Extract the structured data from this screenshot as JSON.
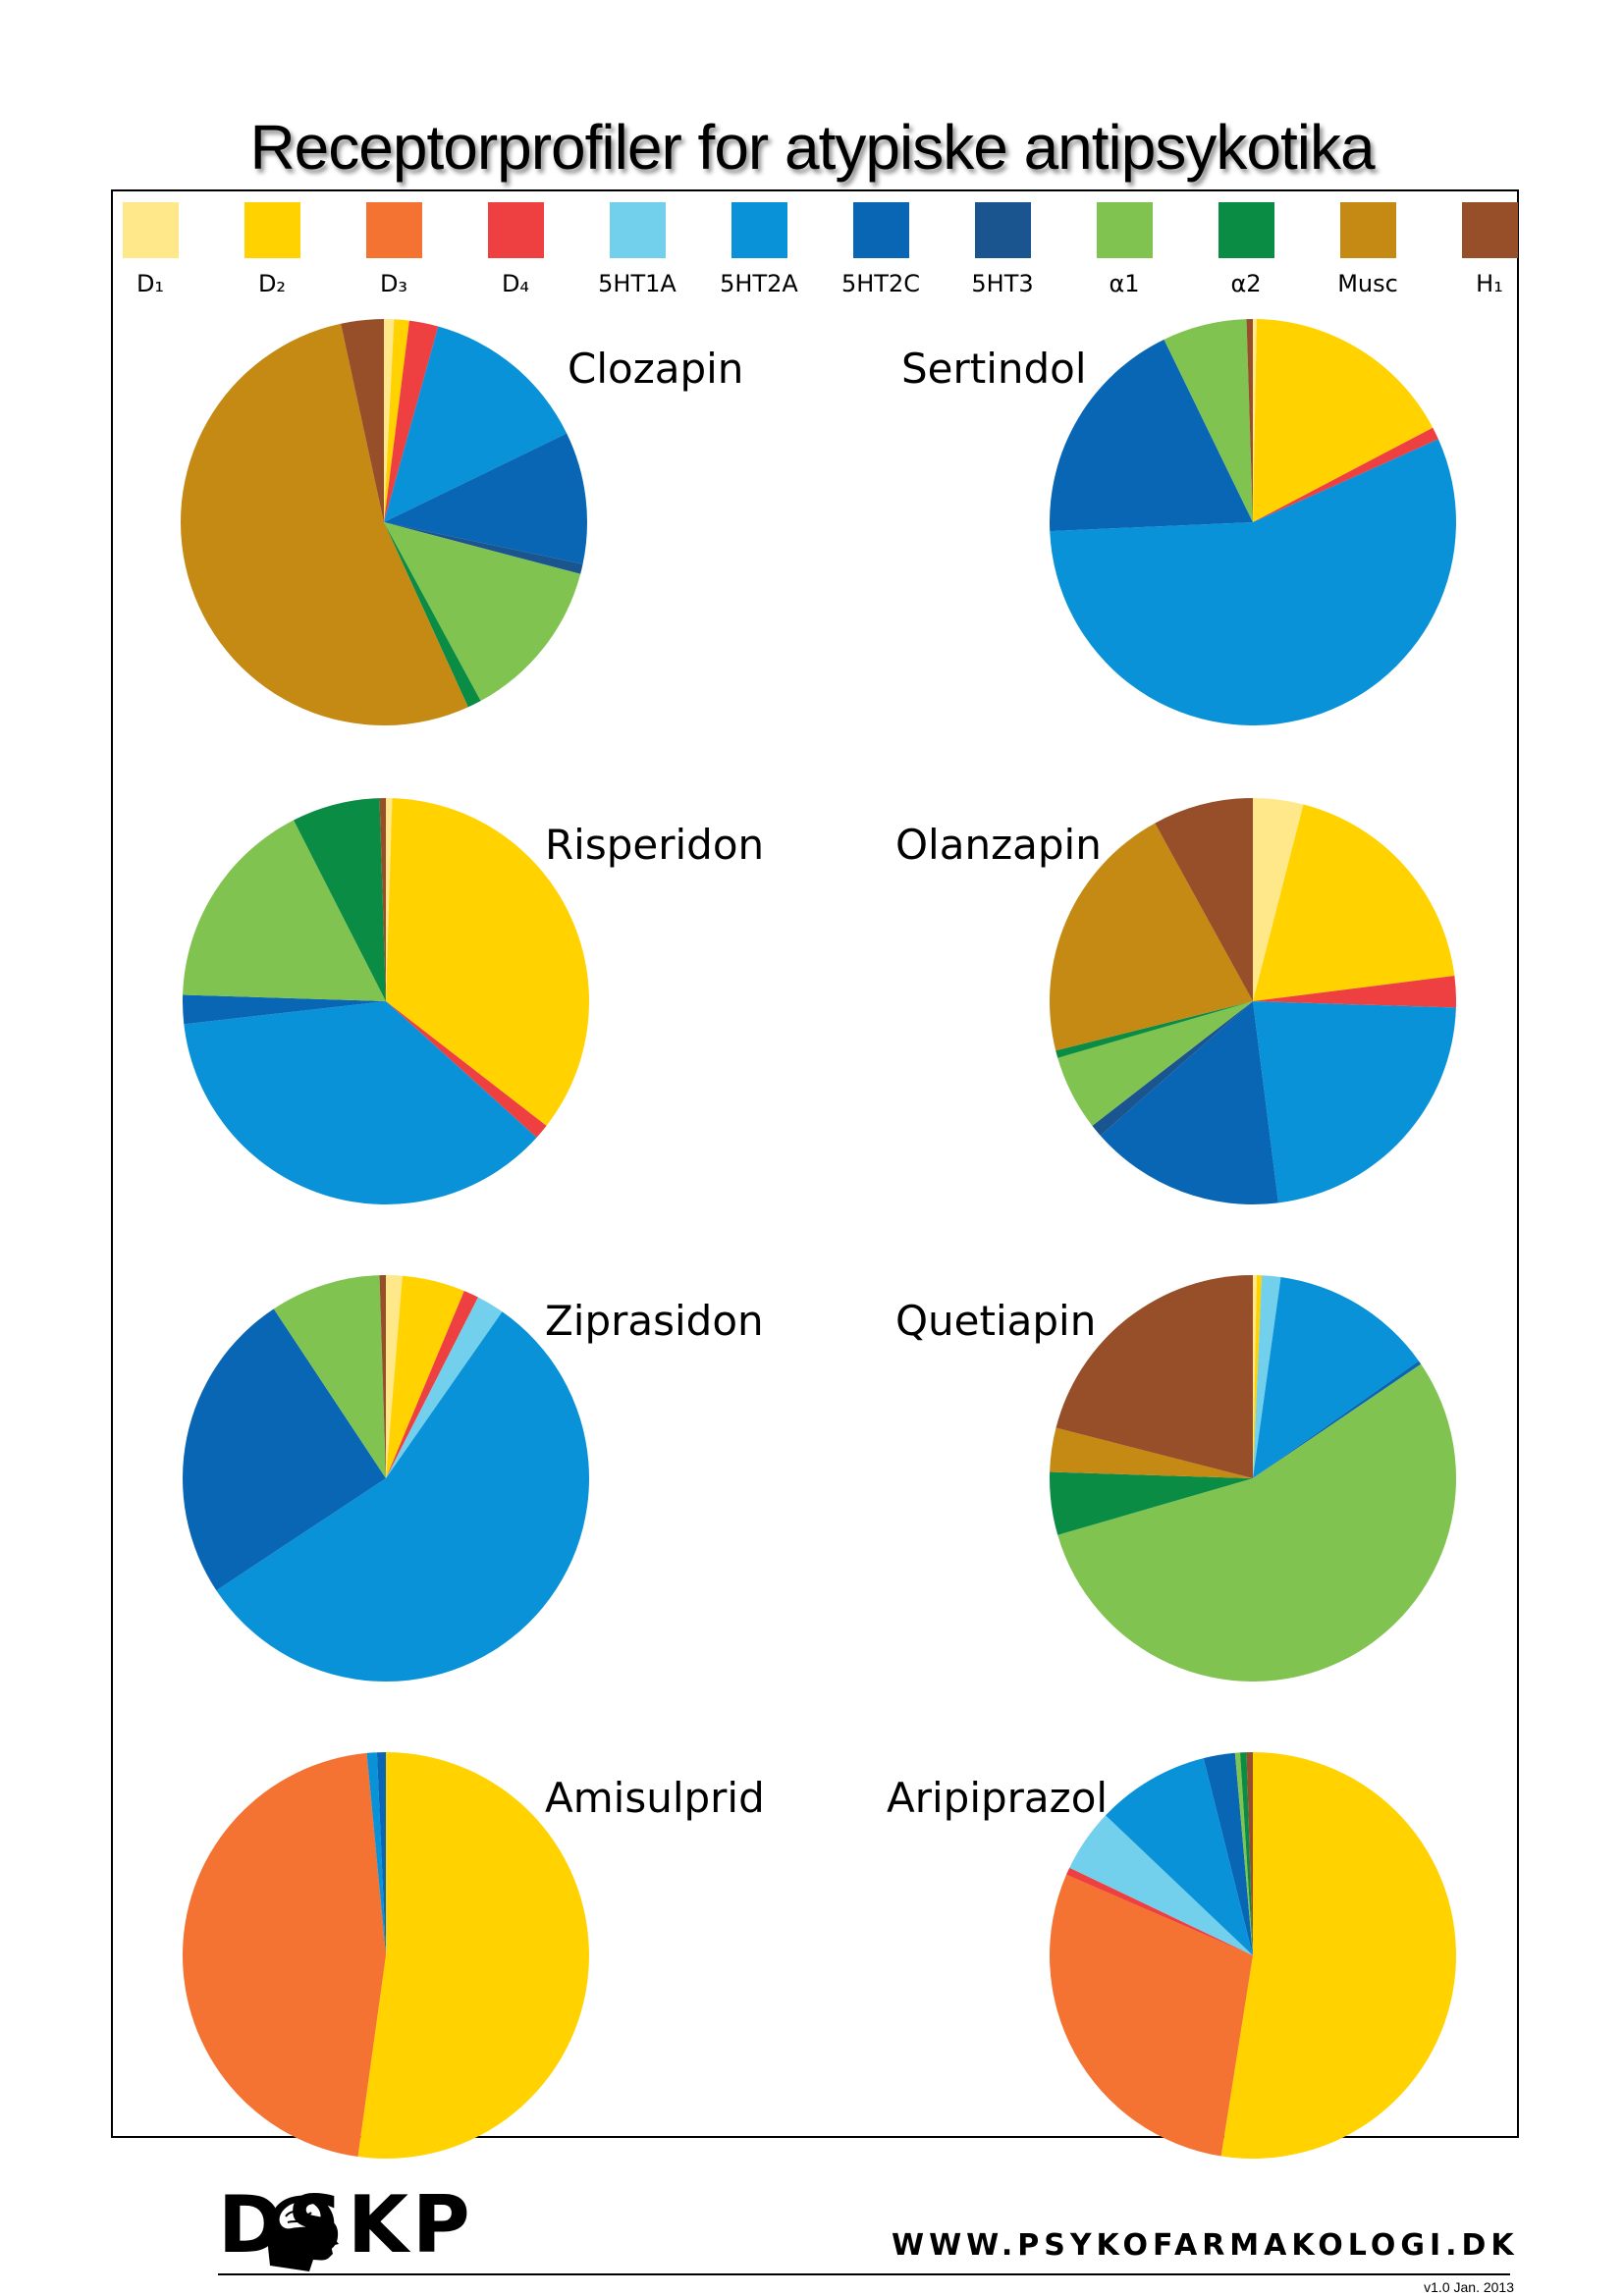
{
  "title": "Receptorprofiler for atypiske antipsykotika",
  "legend": [
    {
      "key": "D1",
      "label": "D₁",
      "color": "#FFE88A"
    },
    {
      "key": "D2",
      "label": "D₂",
      "color": "#FFD200"
    },
    {
      "key": "D3",
      "label": "D₃",
      "color": "#F47232"
    },
    {
      "key": "D4",
      "label": "D₄",
      "color": "#EE4040"
    },
    {
      "key": "5HT1A",
      "label": "5HT1A",
      "color": "#72D0EC"
    },
    {
      "key": "5HT2A",
      "label": "5HT2A",
      "color": "#0A92D8"
    },
    {
      "key": "5HT2C",
      "label": "5HT2C",
      "color": "#0866B4"
    },
    {
      "key": "5HT3",
      "label": "5HT3",
      "color": "#1A5590"
    },
    {
      "key": "a1",
      "label": "α1",
      "color": "#80C350"
    },
    {
      "key": "a2",
      "label": "α2",
      "color": "#0A8C45"
    },
    {
      "key": "Musc",
      "label": "Musc",
      "color": "#C48A14"
    },
    {
      "key": "H1",
      "label": "H₁",
      "color": "#974F2A"
    }
  ],
  "chart_data": [
    {
      "type": "pie",
      "title": "Clozapin",
      "categories": [
        "D1",
        "D2",
        "D3",
        "D4",
        "5HT1A",
        "5HT2A",
        "5HT2C",
        "5HT3",
        "a1",
        "a2",
        "Musc",
        "H1"
      ],
      "values": [
        0.8,
        1.2,
        0,
        2.3,
        0,
        13.5,
        10.5,
        0.8,
        13.0,
        1.1,
        53.4,
        3.4
      ]
    },
    {
      "type": "pie",
      "title": "Sertindol",
      "categories": [
        "D1",
        "D2",
        "D3",
        "D4",
        "5HT1A",
        "5HT2A",
        "5HT2C",
        "5HT3",
        "a1",
        "a2",
        "Musc",
        "H1"
      ],
      "values": [
        0.3,
        17.0,
        0,
        1.0,
        0,
        56.0,
        18.5,
        0,
        6.7,
        0,
        0,
        0.5
      ]
    },
    {
      "type": "pie",
      "title": "Risperidon",
      "categories": [
        "D1",
        "D2",
        "D3",
        "D4",
        "5HT1A",
        "5HT2A",
        "5HT2C",
        "5HT3",
        "a1",
        "a2",
        "Musc",
        "H1"
      ],
      "values": [
        0.5,
        35.0,
        0,
        1.2,
        0,
        36.5,
        2.3,
        0,
        17.0,
        7.0,
        0,
        0.5
      ]
    },
    {
      "type": "pie",
      "title": "Olanzapin",
      "categories": [
        "D1",
        "D2",
        "D3",
        "D4",
        "5HT1A",
        "5HT2A",
        "5HT2C",
        "5HT3",
        "a1",
        "a2",
        "Musc",
        "H1"
      ],
      "values": [
        4.0,
        19.0,
        0,
        2.5,
        0,
        22.5,
        15.5,
        1.0,
        6.0,
        0.6,
        20.9,
        8.0
      ]
    },
    {
      "type": "pie",
      "title": "Ziprasidon",
      "categories": [
        "D1",
        "D2",
        "D3",
        "D4",
        "5HT1A",
        "5HT2A",
        "5HT2C",
        "5HT3",
        "a1",
        "a2",
        "Musc",
        "H1"
      ],
      "values": [
        1.3,
        5.0,
        0,
        1.2,
        2.2,
        56.0,
        25.0,
        0,
        8.8,
        0,
        0,
        0.5
      ]
    },
    {
      "type": "pie",
      "title": "Quetiapin",
      "categories": [
        "D1",
        "D2",
        "D3",
        "D4",
        "5HT1A",
        "5HT2A",
        "5HT2C",
        "5HT3",
        "a1",
        "a2",
        "Musc",
        "H1"
      ],
      "values": [
        0.3,
        0.4,
        0,
        0,
        1.5,
        13.0,
        0.3,
        0,
        55.0,
        5.0,
        3.5,
        21.0
      ]
    },
    {
      "type": "pie",
      "title": "Amisulprid",
      "categories": [
        "D1",
        "D2",
        "D3",
        "D4",
        "5HT1A",
        "5HT2A",
        "5HT2C",
        "5HT3",
        "a1",
        "a2",
        "Musc",
        "H1"
      ],
      "values": [
        0,
        52.2,
        46.3,
        0,
        0,
        0.8,
        0.7,
        0,
        0,
        0,
        0,
        0
      ]
    },
    {
      "type": "pie",
      "title": "Aripiprazol",
      "categories": [
        "D1",
        "D2",
        "D3",
        "D4",
        "5HT1A",
        "5HT2A",
        "5HT2C",
        "5HT3",
        "a1",
        "a2",
        "Musc",
        "H1"
      ],
      "values": [
        0,
        52.5,
        29.0,
        0.6,
        5.0,
        9.0,
        2.5,
        0,
        0.4,
        0.5,
        0,
        0.5
      ]
    }
  ],
  "footer": {
    "logo_text": "DSKP",
    "website": "WWW.PSYKOFARMAKOLOGI.DK",
    "version": "v1.0 Jan. 2013"
  }
}
